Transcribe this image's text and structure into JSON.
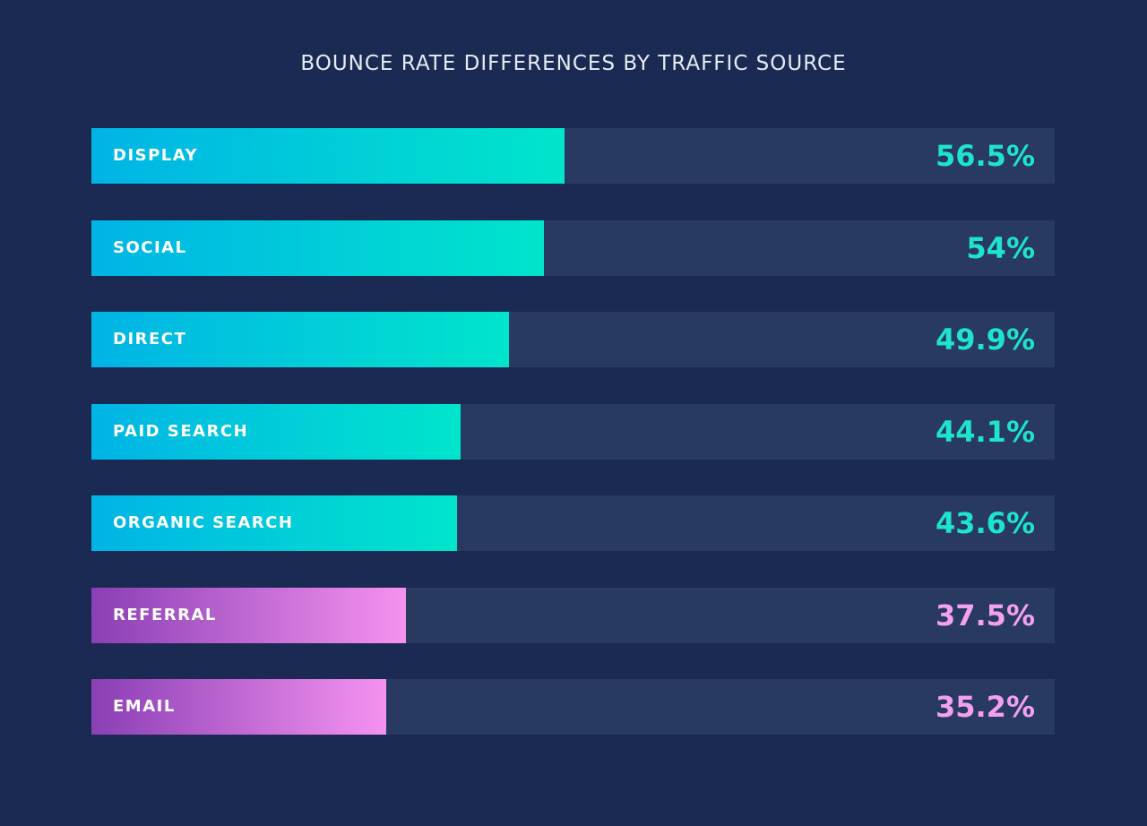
{
  "chart_data": {
    "type": "bar",
    "orientation": "horizontal",
    "title": "BOUNCE RATE DIFFERENCES BY TRAFFIC SOURCE",
    "categories": [
      "DISPLAY",
      "SOCIAL",
      "DIRECT",
      "PAID SEARCH",
      "ORGANIC SEARCH",
      "REFERRAL",
      "EMAIL"
    ],
    "values": [
      56.5,
      54,
      49.9,
      44.1,
      43.6,
      37.5,
      35.2
    ],
    "value_labels": [
      "56.5%",
      "54%",
      "49.9%",
      "44.1%",
      "43.6%",
      "37.5%",
      "35.2%"
    ],
    "unit": "%",
    "xlim": [
      0,
      115
    ],
    "grid": false,
    "colors": {
      "background": "#1b2a52",
      "track": "#283a60",
      "cyan_gradient": [
        "#00b4e6",
        "#00e5cc"
      ],
      "purple_gradient": [
        "#8a3fb5",
        "#f592f0"
      ],
      "cyan_value": "#1ee3d0",
      "purple_value": "#f3a0f0"
    },
    "color_groups": [
      "cyan",
      "cyan",
      "cyan",
      "cyan",
      "cyan",
      "purple",
      "purple"
    ]
  }
}
